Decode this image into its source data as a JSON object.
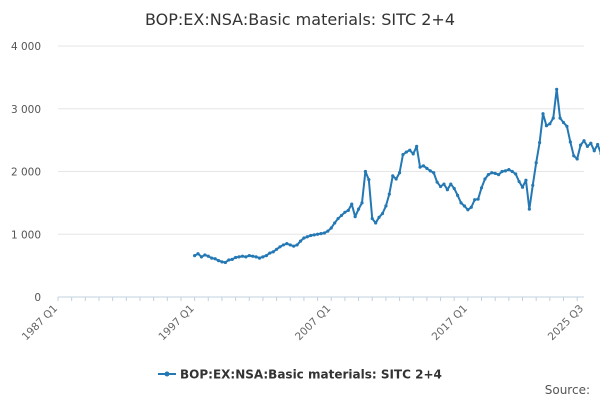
{
  "chart_data": {
    "type": "line",
    "title": "BOP:EX:NSA:Basic materials: SITC 2+4",
    "xlabel": "",
    "ylabel": "",
    "ylim": [
      0,
      4000
    ],
    "y_ticks": [
      0,
      1000,
      2000,
      3000,
      4000
    ],
    "y_tick_labels": [
      "0",
      "1 000",
      "2 000",
      "3 000",
      "4 000"
    ],
    "x_range": [
      "1987 Q1",
      "2025 Q3"
    ],
    "x_ticks": [
      "1987 Q1",
      "1997 Q1",
      "2007 Q1",
      "2017 Q1",
      "2025 Q3"
    ],
    "grid": true,
    "legend": "bottom",
    "color": "#2478b3",
    "series": [
      {
        "name": "BOP:EX:NSA:Basic materials: SITC 2+4",
        "start": "1997 Q1",
        "frequency": "quarterly",
        "values": [
          660,
          690,
          640,
          670,
          650,
          620,
          610,
          580,
          560,
          550,
          590,
          600,
          630,
          640,
          650,
          640,
          660,
          650,
          640,
          620,
          640,
          660,
          700,
          720,
          760,
          800,
          830,
          850,
          830,
          810,
          830,
          890,
          940,
          960,
          980,
          990,
          1000,
          1010,
          1020,
          1050,
          1100,
          1180,
          1250,
          1300,
          1350,
          1380,
          1480,
          1280,
          1400,
          1500,
          2000,
          1870,
          1250,
          1180,
          1270,
          1330,
          1450,
          1640,
          1930,
          1880,
          1980,
          2270,
          2310,
          2340,
          2280,
          2400,
          2070,
          2090,
          2050,
          2010,
          1980,
          1830,
          1760,
          1800,
          1710,
          1800,
          1730,
          1620,
          1500,
          1450,
          1390,
          1430,
          1550,
          1560,
          1740,
          1880,
          1950,
          1980,
          1970,
          1950,
          2000,
          2010,
          2030,
          2000,
          1960,
          1840,
          1750,
          1860,
          1400,
          1780,
          2140,
          2460,
          2920,
          2730,
          2760,
          2850,
          3310,
          2850,
          2780,
          2720,
          2470,
          2250,
          2200,
          2420,
          2490,
          2400,
          2450,
          2330,
          2430,
          2280
        ]
      }
    ]
  },
  "source_label": "Source:"
}
